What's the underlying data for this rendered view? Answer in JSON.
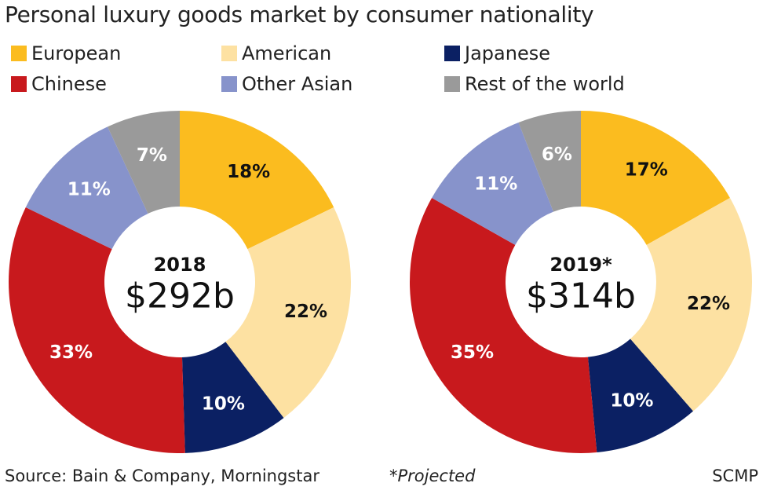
{
  "title": "Personal luxury goods market by consumer nationality",
  "footer": {
    "source": "Source: Bain & Company, Morningstar",
    "note": "*Projected",
    "brand": "SCMP"
  },
  "colors": {
    "European": "#fbbc1f",
    "American": "#fde1a2",
    "Japanese": "#0b2063",
    "Chinese": "#c8191d",
    "Other Asian": "#8793cb",
    "Rest of the world": "#9a9a9a"
  },
  "legend": [
    "European",
    "American",
    "Japanese",
    "Chinese",
    "Other Asian",
    "Rest of the world"
  ],
  "chart_data": [
    {
      "type": "pie",
      "year": "2018",
      "total": "$292b",
      "categories": [
        "European",
        "American",
        "Japanese",
        "Chinese",
        "Other Asian",
        "Rest of the world"
      ],
      "values": [
        18,
        22,
        10,
        33,
        11,
        7
      ],
      "labels": [
        "18%",
        "22%",
        "10%",
        "33%",
        "11%",
        "7%"
      ]
    },
    {
      "type": "pie",
      "year": "2019*",
      "total": "$314b",
      "categories": [
        "European",
        "American",
        "Japanese",
        "Chinese",
        "Other Asian",
        "Rest of the world"
      ],
      "values": [
        17,
        22,
        10,
        35,
        11,
        6
      ],
      "labels": [
        "17%",
        "22%",
        "10%",
        "35%",
        "11%",
        "6%"
      ]
    }
  ]
}
